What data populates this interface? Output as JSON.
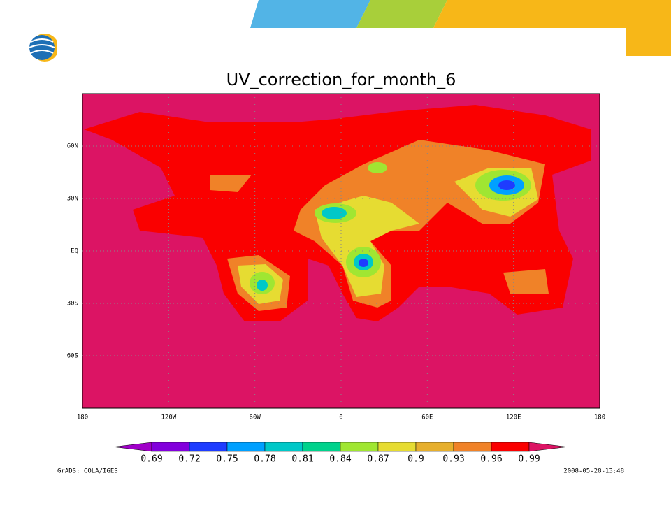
{
  "map": {
    "title": "UV_correction_for_month_6",
    "lat_labels": [
      "60N",
      "30N",
      "EQ",
      "30S",
      "60S"
    ],
    "lon_labels": [
      "180",
      "120W",
      "60W",
      "0",
      "60E",
      "120E",
      "180"
    ]
  },
  "colorbar": {
    "levels": [
      0.69,
      0.72,
      0.75,
      0.78,
      0.81,
      0.84,
      0.87,
      0.9,
      0.93,
      0.96,
      0.99
    ],
    "colors": [
      "#a000c8",
      "#8200dc",
      "#1e3cff",
      "#00a0ff",
      "#00c8c8",
      "#00d28c",
      "#a0e632",
      "#e6dc32",
      "#e6af2d",
      "#f08228",
      "#fa0000",
      "#dc1464"
    ]
  },
  "footer": {
    "left": "GrADS: COLA/IGES",
    "right": "2008-05-28-13:48"
  }
}
